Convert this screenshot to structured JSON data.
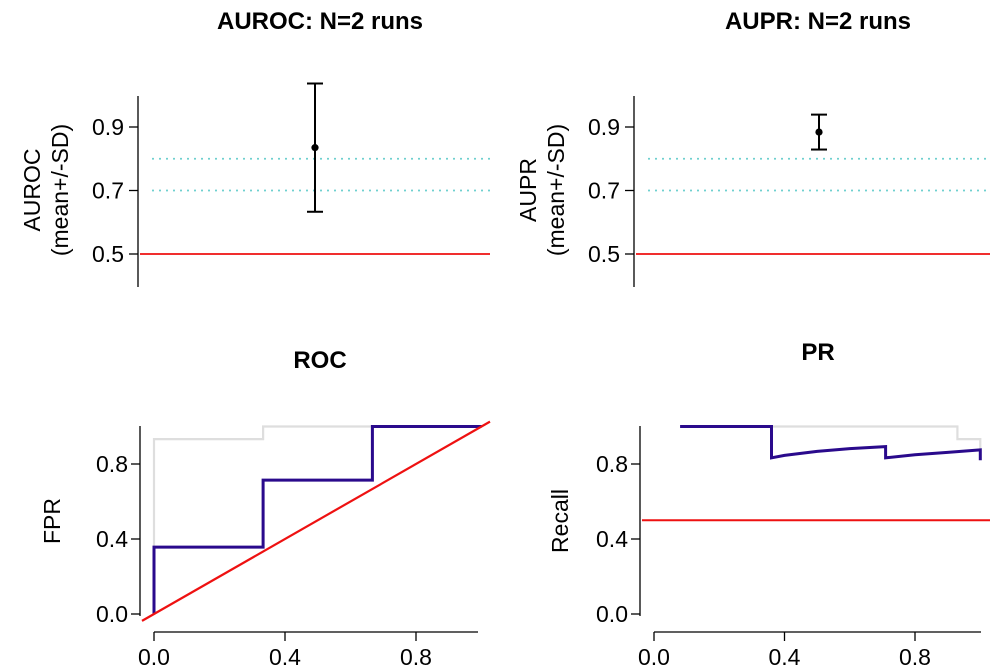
{
  "colors": {
    "reference": "#ee1111",
    "threshold": "#6fd0cf",
    "curve": "#2a0a8c",
    "background_curve": "#dedede",
    "ink": "#000000"
  },
  "chart_data": [
    {
      "id": "auroc",
      "type": "errorbar",
      "title": "AUROC: N=2 runs",
      "ylabel": [
        "AUROC",
        "(mean+/-SD)"
      ],
      "xlabel": "",
      "ylim": [
        0.43,
        1.02
      ],
      "yticks": [
        0.5,
        0.7,
        0.9
      ],
      "ytick_labels": [
        "0.5",
        "0.7",
        "0.9"
      ],
      "point": {
        "mean": 0.835,
        "lower": 0.633,
        "upper": 1.037
      },
      "reference_line": 0.5,
      "threshold_lines": [
        0.7,
        0.8
      ]
    },
    {
      "id": "aupr",
      "type": "errorbar",
      "title": "AUPR: N=2 runs",
      "ylabel": [
        "AUPR",
        "(mean+/-SD)"
      ],
      "xlabel": "",
      "ylim": [
        0.43,
        1.02
      ],
      "yticks": [
        0.5,
        0.7,
        0.9
      ],
      "ytick_labels": [
        "0.5",
        "0.7",
        "0.9"
      ],
      "point": {
        "mean": 0.884,
        "lower": 0.829,
        "upper": 0.939
      },
      "reference_line": 0.5,
      "threshold_lines": [
        0.7,
        0.8
      ]
    },
    {
      "id": "roc",
      "type": "line",
      "title": "ROC",
      "ylabel": "FPR",
      "xlabel": "",
      "xlim": [
        0,
        1
      ],
      "ylim": [
        0,
        1
      ],
      "xticks": [
        0.0,
        0.4,
        0.8
      ],
      "xtick_labels": [
        "0.0",
        "0.4",
        "0.8"
      ],
      "yticks": [
        0.0,
        0.4,
        0.8
      ],
      "ytick_labels": [
        "0.0",
        "0.4",
        "0.8"
      ],
      "series": [
        {
          "x": [
            0,
            0,
            0.333,
            0.333,
            1.0
          ],
          "y": [
            0,
            0.933,
            0.933,
            1.0,
            1.0
          ]
        },
        {
          "x": [
            0,
            0,
            0.333,
            0.333,
            0.667,
            0.667,
            1.0
          ],
          "y": [
            0,
            0.357,
            0.357,
            0.714,
            0.714,
            1.0,
            1.0
          ]
        }
      ],
      "diagonal": {
        "x": [
          0,
          1.0
        ],
        "y": [
          0,
          1.0
        ]
      }
    },
    {
      "id": "pr",
      "type": "line",
      "title": "PR",
      "ylabel": "Recall",
      "xlabel": "",
      "xlim": [
        0,
        1
      ],
      "ylim": [
        0,
        1
      ],
      "xticks": [
        0.0,
        0.4,
        0.8
      ],
      "xtick_labels": [
        "0.0",
        "0.4",
        "0.8"
      ],
      "yticks": [
        0.0,
        0.4,
        0.8
      ],
      "ytick_labels": [
        "0.0",
        "0.4",
        "0.8"
      ],
      "series": [
        {
          "x": [
            0.08,
            0.36,
            0.93,
            0.93,
            1.0,
            1.0
          ],
          "y": [
            1.0,
            1.0,
            1.0,
            0.933,
            0.933,
            0.88
          ]
        },
        {
          "x": [
            0.08,
            0.36,
            0.36,
            0.4,
            0.5,
            0.6,
            0.71,
            0.71,
            0.8,
            0.9,
            1.0,
            1.0
          ],
          "y": [
            1.0,
            1.0,
            0.833,
            0.846,
            0.867,
            0.882,
            0.893,
            0.833,
            0.849,
            0.862,
            0.875,
            0.82
          ]
        }
      ],
      "reference_line": 0.5
    }
  ]
}
